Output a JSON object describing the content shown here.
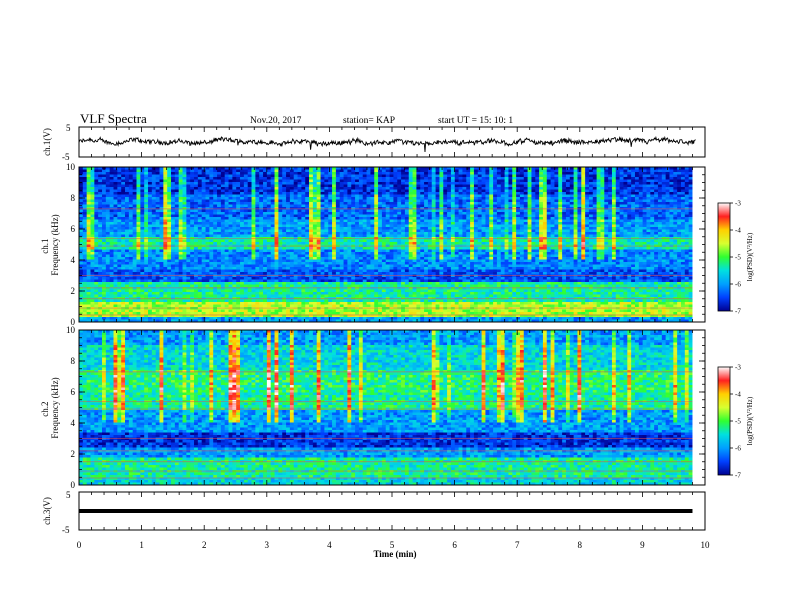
{
  "header": {
    "title": "VLF Spectra",
    "date": "Nov.20, 2017",
    "station": "station= KAP",
    "start": "start  UT =   15: 10: 1"
  },
  "colorbar": {
    "label": "log(PSD)(V²/Hz)",
    "ticks": [
      "-3",
      "-4",
      "-5",
      "-6",
      "-7"
    ],
    "colors": [
      "#ffffff",
      "#ff2020",
      "#ffd000",
      "#d8ff30",
      "#30ff30",
      "#00e0e0",
      "#00a0ff",
      "#0040ff",
      "#000090"
    ]
  },
  "chart_data": [
    {
      "type": "line",
      "panel": "ch1-waveform",
      "ylabel": "ch.1(V)",
      "ylim": [
        -5,
        5
      ],
      "y_ticks": [
        "5",
        "-5"
      ],
      "xlim": [
        0,
        10
      ],
      "note_values": "noisy waveform fluctuating roughly between -1.5 and 1.5 V around a baseline of about 0 V",
      "baseline": 0,
      "amplitude": 1.5,
      "color": "#000000"
    },
    {
      "type": "heatmap",
      "panel": "ch1-spectrogram",
      "ylabel": "ch.1\nFrequency (kHz)",
      "ylim": [
        0,
        10
      ],
      "y_ticks": [
        "0",
        "2",
        "4",
        "6",
        "8",
        "10"
      ],
      "xlim": [
        0,
        10
      ],
      "data_xmax_min": 9.8,
      "bands": [
        {
          "f0": 0.0,
          "f1": 0.3,
          "level": -6.0
        },
        {
          "f0": 0.3,
          "f1": 1.3,
          "level": -4.6
        },
        {
          "f0": 1.3,
          "f1": 2.6,
          "level": -5.3
        },
        {
          "f0": 2.6,
          "f1": 3.4,
          "level": -6.4
        },
        {
          "f0": 3.4,
          "f1": 4.6,
          "level": -6.1
        },
        {
          "f0": 4.6,
          "f1": 5.5,
          "level": -5.4
        },
        {
          "f0": 5.5,
          "f1": 6.6,
          "level": -6.0
        },
        {
          "f0": 6.6,
          "f1": 8.2,
          "level": -6.3
        },
        {
          "f0": 8.2,
          "f1": 10.0,
          "level": -6.6
        }
      ]
    },
    {
      "type": "heatmap",
      "panel": "ch2-spectrogram",
      "ylabel": "ch.2\nFrequency (kHz)",
      "ylim": [
        0,
        10
      ],
      "y_ticks": [
        "0",
        "2",
        "4",
        "6",
        "8",
        "10"
      ],
      "xlim": [
        0,
        10
      ],
      "data_xmax_min": 9.8,
      "bands": [
        {
          "f0": 0.0,
          "f1": 0.5,
          "level": -5.6
        },
        {
          "f0": 0.5,
          "f1": 1.8,
          "level": -5.3
        },
        {
          "f0": 1.8,
          "f1": 2.5,
          "level": -6.0
        },
        {
          "f0": 2.5,
          "f1": 3.4,
          "level": -6.6
        },
        {
          "f0": 3.4,
          "f1": 4.8,
          "level": -6.0
        },
        {
          "f0": 4.8,
          "f1": 6.0,
          "level": -5.3
        },
        {
          "f0": 6.0,
          "f1": 7.5,
          "level": -5.2
        },
        {
          "f0": 7.5,
          "f1": 9.0,
          "level": -5.6
        },
        {
          "f0": 9.0,
          "f1": 10.0,
          "level": -6.0
        }
      ]
    },
    {
      "type": "line",
      "panel": "ch3-waveform",
      "ylabel": "ch.3(V)",
      "ylim": [
        -5,
        5
      ],
      "y_ticks": [
        "5",
        "-5"
      ],
      "xlim": [
        0,
        10
      ],
      "baseline": 0,
      "amplitude": 0.3,
      "data_xmax_min": 9.8,
      "color": "#000000"
    }
  ],
  "xaxis": {
    "label": "Time  (min)",
    "ticks": [
      "0",
      "1",
      "2",
      "3",
      "4",
      "5",
      "6",
      "7",
      "8",
      "9",
      "10"
    ]
  }
}
